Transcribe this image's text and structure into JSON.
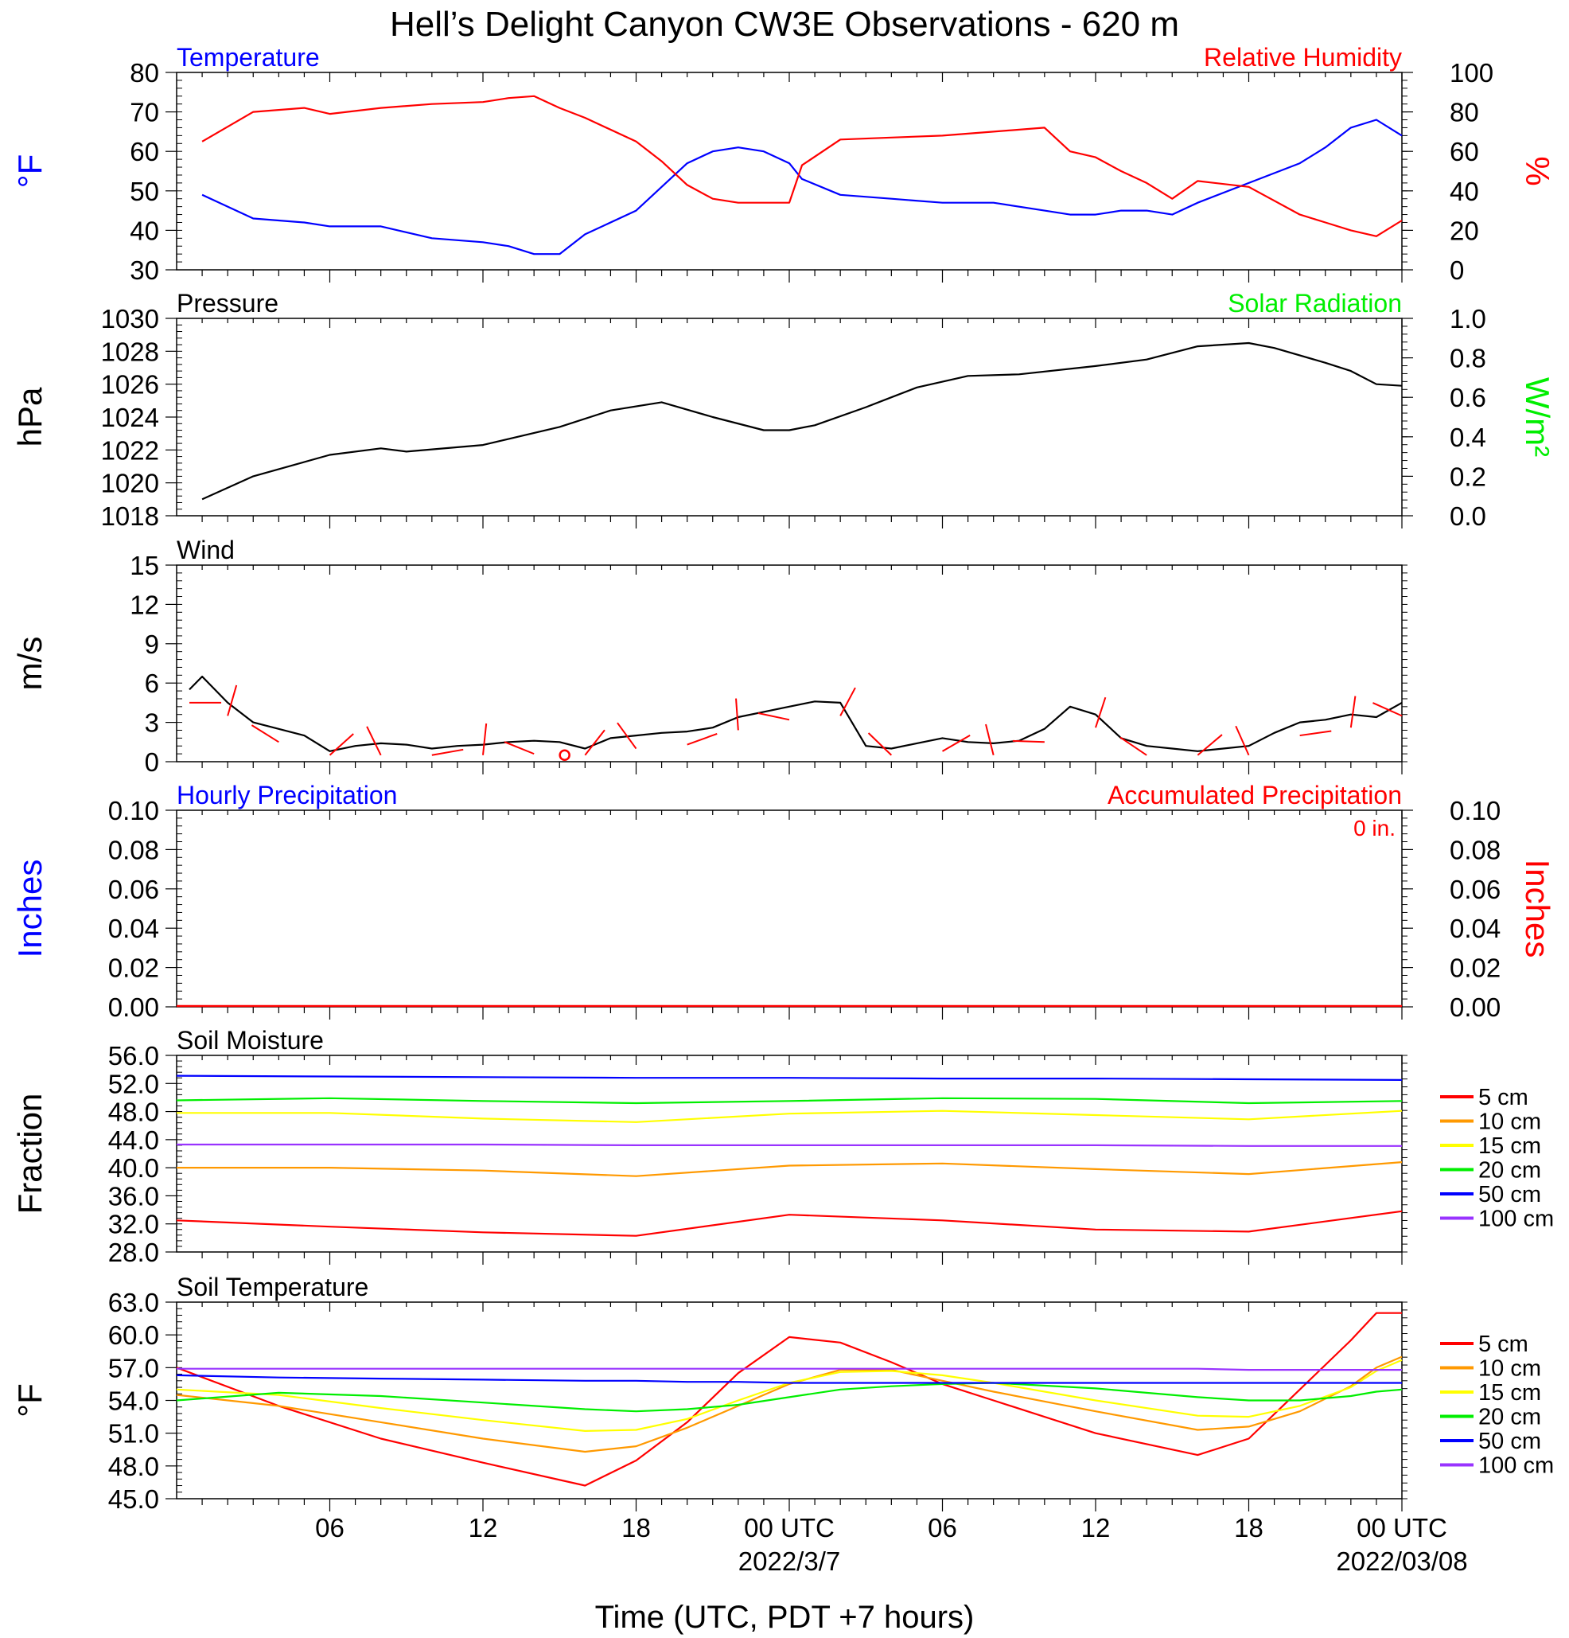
{
  "title": "Hell’s Delight Canyon CW3E Observations - 620 m",
  "xaxis": {
    "label": "Time (UTC, PDT +7 hours)",
    "hour_ticks": [
      "06",
      "12",
      "18",
      "00 UTC",
      "06",
      "12",
      "18",
      "00 UTC"
    ],
    "date_labels": [
      "2022/3/7",
      "2022/03/08"
    ]
  },
  "colors": {
    "temperature": "#0000ff",
    "humidity": "#ff0000",
    "pressure": "#000000",
    "solar": "#00ee00",
    "precip_hourly": "#0000ff",
    "precip_accum": "#ff0000",
    "depth_5cm": "#ff0000",
    "depth_10cm": "#ff9900",
    "depth_15cm": "#ffff00",
    "depth_20cm": "#00ee00",
    "depth_50cm": "#0000ff",
    "depth_100cm": "#9933ff"
  },
  "panels": {
    "temp_rh": {
      "left_title": "Temperature",
      "right_title": "Relative Humidity",
      "left_ylabel": "°F",
      "right_ylabel": "%",
      "left_ticks": [
        "80",
        "70",
        "60",
        "50",
        "40",
        "30"
      ],
      "right_ticks": [
        "100",
        "80",
        "60",
        "40",
        "20",
        "0"
      ]
    },
    "pressure": {
      "left_title": "Pressure",
      "right_title": "Solar Radiation",
      "left_ylabel": "hPa",
      "right_ylabel": "W/m²",
      "left_ticks": [
        "1030",
        "1028",
        "1026",
        "1024",
        "1022",
        "1020",
        "1018"
      ],
      "right_ticks": [
        "1.0",
        "0.8",
        "0.6",
        "0.4",
        "0.2",
        "0.0"
      ]
    },
    "wind": {
      "left_title": "Wind",
      "left_ylabel": "m/s",
      "left_ticks": [
        "15",
        "12",
        "9",
        "6",
        "3",
        "0"
      ]
    },
    "precip": {
      "left_title": "Hourly Precipitation",
      "right_title": "Accumulated Precipitation",
      "accum_total": "0 in.",
      "left_ylabel": "Inches",
      "right_ylabel": "Inches",
      "left_ticks": [
        "0.10",
        "0.08",
        "0.06",
        "0.04",
        "0.02",
        "0.00"
      ],
      "right_ticks": [
        "0.10",
        "0.08",
        "0.06",
        "0.04",
        "0.02",
        "0.00"
      ]
    },
    "soil_moisture": {
      "left_title": "Soil Moisture",
      "left_ylabel": "Fraction",
      "left_ticks": [
        "56.0",
        "52.0",
        "48.0",
        "44.0",
        "40.0",
        "36.0",
        "32.0",
        "28.0"
      ],
      "legend": [
        "5 cm",
        "10 cm",
        "15 cm",
        "20 cm",
        "50 cm",
        "100 cm"
      ]
    },
    "soil_temp": {
      "left_title": "Soil Temperature",
      "left_ylabel": "°F",
      "left_ticks": [
        "63.0",
        "60.0",
        "57.0",
        "54.0",
        "51.0",
        "48.0",
        "45.0"
      ],
      "legend": [
        "5 cm",
        "10 cm",
        "15 cm",
        "20 cm",
        "50 cm",
        "100 cm"
      ]
    }
  },
  "chart_data": [
    {
      "type": "line",
      "title": "Temperature / Relative Humidity",
      "x": [
        1,
        3,
        5,
        6,
        8,
        10,
        12,
        13,
        14,
        15,
        16,
        18,
        19,
        20,
        21,
        22,
        23,
        24,
        24.5,
        26,
        28,
        30,
        32,
        34,
        35,
        36,
        37,
        38,
        39,
        40,
        42,
        44,
        45,
        46,
        47,
        48
      ],
      "series": [
        {
          "name": "Temperature",
          "unit": "°F",
          "values": [
            49,
            43,
            42,
            41,
            41,
            38,
            37,
            36,
            34,
            34,
            39,
            45,
            51,
            57,
            60,
            61,
            60,
            57,
            53,
            49,
            48,
            47,
            47,
            45,
            44,
            44,
            45,
            45,
            44,
            47,
            52,
            57,
            61,
            66,
            68,
            64
          ]
        },
        {
          "name": "Relative Humidity",
          "unit": "%",
          "values": [
            65,
            80,
            82,
            79,
            82,
            84,
            85,
            87,
            88,
            82,
            77,
            65,
            55,
            43,
            36,
            34,
            34,
            34,
            53,
            66,
            67,
            68,
            70,
            72,
            60,
            57,
            50,
            44,
            36,
            45,
            42,
            28,
            24,
            20,
            17,
            25
          ]
        }
      ],
      "ylim_left": [
        30,
        80
      ],
      "ylim_right": [
        0,
        100
      ]
    },
    {
      "type": "line",
      "title": "Pressure",
      "x": [
        1,
        3,
        6,
        8,
        9,
        12,
        15,
        17,
        19,
        21,
        23,
        24,
        25,
        27,
        28,
        29,
        31,
        33,
        36,
        38,
        40,
        42,
        43,
        45,
        46,
        47,
        48
      ],
      "series": [
        {
          "name": "Pressure",
          "unit": "hPa",
          "values": [
            1019.0,
            1020.4,
            1021.7,
            1022.1,
            1021.9,
            1022.3,
            1023.4,
            1024.4,
            1024.9,
            1024.0,
            1023.2,
            1023.2,
            1023.5,
            1024.6,
            1025.2,
            1025.8,
            1026.5,
            1026.6,
            1027.1,
            1027.5,
            1028.3,
            1028.5,
            1028.2,
            1027.3,
            1026.8,
            1026.0,
            1025.9
          ]
        }
      ],
      "ylim_left": [
        1018,
        1030
      ],
      "ylim_right": [
        0,
        1
      ]
    },
    {
      "type": "line",
      "title": "Wind",
      "x": [
        0.5,
        1,
        2,
        3,
        4,
        5,
        6,
        7,
        8,
        9,
        10,
        11,
        12,
        13,
        14,
        15,
        16,
        17,
        18,
        19,
        20,
        21,
        22,
        23,
        24,
        25,
        26,
        27,
        28,
        29,
        30,
        31,
        32,
        33,
        34,
        35,
        36,
        37,
        38,
        39,
        40,
        41,
        42,
        43,
        44,
        45,
        46,
        47,
        48
      ],
      "series": [
        {
          "name": "Wind Speed",
          "unit": "m/s",
          "values": [
            5.5,
            6.5,
            4.5,
            3.0,
            2.5,
            2.0,
            0.8,
            1.2,
            1.4,
            1.3,
            1.0,
            1.2,
            1.3,
            1.5,
            1.6,
            1.5,
            1.0,
            1.8,
            2.0,
            2.2,
            2.3,
            2.6,
            3.4,
            3.8,
            4.2,
            4.6,
            4.5,
            1.2,
            1.0,
            1.4,
            1.8,
            1.5,
            1.4,
            1.6,
            2.5,
            4.2,
            3.6,
            1.8,
            1.2,
            1.0,
            0.8,
            1.0,
            1.2,
            2.2,
            3.0,
            3.2,
            3.6,
            3.4,
            4.5
          ]
        }
      ],
      "ylim_left": [
        0,
        15
      ]
    },
    {
      "type": "line",
      "title": "Precipitation",
      "x": [
        0,
        48
      ],
      "series": [
        {
          "name": "Hourly Precipitation",
          "unit": "in",
          "values": [
            0,
            0
          ]
        },
        {
          "name": "Accumulated Precipitation",
          "unit": "in",
          "values": [
            0,
            0
          ]
        }
      ],
      "ylim_left": [
        0,
        0.1
      ],
      "ylim_right": [
        0,
        0.1
      ]
    },
    {
      "type": "line",
      "title": "Soil Moisture",
      "x": [
        0,
        6,
        12,
        18,
        24,
        30,
        36,
        42,
        48
      ],
      "series": [
        {
          "name": "5 cm",
          "values": [
            32.5,
            31.6,
            30.8,
            30.3,
            33.3,
            32.5,
            31.2,
            30.9,
            33.8
          ]
        },
        {
          "name": "10 cm",
          "values": [
            40.0,
            40.0,
            39.6,
            38.8,
            40.3,
            40.6,
            39.8,
            39.1,
            40.8
          ]
        },
        {
          "name": "15 cm",
          "values": [
            47.8,
            47.8,
            47.0,
            46.5,
            47.7,
            48.1,
            47.5,
            46.9,
            48.1
          ]
        },
        {
          "name": "20 cm",
          "values": [
            49.6,
            49.9,
            49.5,
            49.2,
            49.5,
            49.9,
            49.8,
            49.2,
            49.5
          ]
        },
        {
          "name": "50 cm",
          "values": [
            53.1,
            53.0,
            52.9,
            52.8,
            52.8,
            52.7,
            52.7,
            52.6,
            52.5
          ]
        },
        {
          "name": "100 cm",
          "values": [
            43.3,
            43.3,
            43.3,
            43.2,
            43.2,
            43.2,
            43.2,
            43.1,
            43.1
          ]
        }
      ],
      "ylim": [
        28,
        56
      ]
    },
    {
      "type": "line",
      "title": "Soil Temperature",
      "x": [
        0,
        4,
        8,
        12,
        16,
        18,
        20,
        22,
        24,
        26,
        28,
        30,
        32,
        36,
        40,
        42,
        44,
        46,
        47,
        48
      ],
      "series": [
        {
          "name": "5 cm",
          "values": [
            57.0,
            53.5,
            50.5,
            48.3,
            46.2,
            48.5,
            52.0,
            56.5,
            59.8,
            59.3,
            57.5,
            55.5,
            54.0,
            51.0,
            49.0,
            50.5,
            55.0,
            59.5,
            62.0,
            62.0
          ]
        },
        {
          "name": "10 cm",
          "values": [
            54.5,
            53.5,
            52.0,
            50.5,
            49.3,
            49.8,
            51.5,
            53.5,
            55.5,
            56.8,
            56.8,
            55.8,
            54.8,
            53.0,
            51.3,
            51.6,
            53.0,
            55.3,
            57.0,
            58.0
          ]
        },
        {
          "name": "15 cm",
          "values": [
            55.0,
            54.5,
            53.3,
            52.2,
            51.2,
            51.3,
            52.3,
            54.0,
            55.6,
            56.6,
            56.7,
            56.3,
            55.6,
            54.0,
            52.6,
            52.5,
            53.5,
            55.2,
            56.7,
            57.7
          ]
        },
        {
          "name": "20 cm",
          "values": [
            54.0,
            54.7,
            54.4,
            53.8,
            53.2,
            53.0,
            53.2,
            53.6,
            54.3,
            55.0,
            55.3,
            55.5,
            55.6,
            55.1,
            54.3,
            54.0,
            54.0,
            54.4,
            54.8,
            55.0
          ]
        },
        {
          "name": "50 cm",
          "values": [
            56.3,
            56.1,
            56.0,
            55.9,
            55.8,
            55.8,
            55.7,
            55.7,
            55.6,
            55.6,
            55.6,
            55.6,
            55.6,
            55.6,
            55.6,
            55.6,
            55.6,
            55.6,
            55.6,
            55.6
          ]
        },
        {
          "name": "100 cm",
          "values": [
            56.9,
            56.9,
            56.9,
            56.9,
            56.9,
            56.9,
            56.9,
            56.9,
            56.9,
            56.9,
            56.9,
            56.9,
            56.9,
            56.9,
            56.9,
            56.8,
            56.8,
            56.8,
            56.8,
            56.8
          ]
        }
      ],
      "ylim": [
        45,
        63
      ]
    }
  ]
}
